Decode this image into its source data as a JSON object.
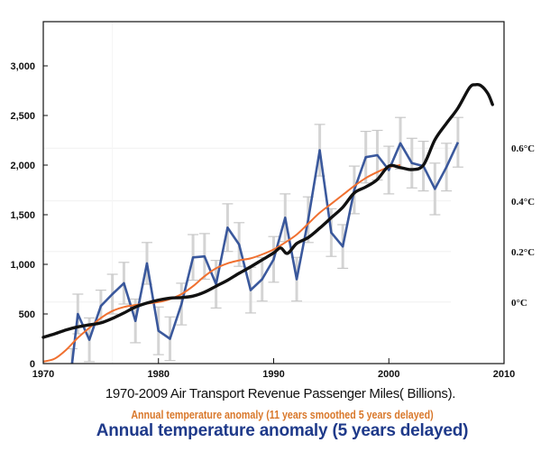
{
  "chart_data": {
    "type": "line",
    "title": "",
    "xlabel": "",
    "ylabel": "",
    "xlim": [
      1970,
      2010
    ],
    "ylim": [
      0,
      3450
    ],
    "x_ticks": [
      1970,
      1980,
      1990,
      2000,
      2010
    ],
    "x_tick_labels": [
      "1970",
      "1980",
      "1990",
      "2000",
      "2010"
    ],
    "y_ticks": [
      0,
      500,
      1000,
      1500,
      2000,
      2500,
      3000
    ],
    "y_tick_labels": [
      "0",
      "500",
      "1,000",
      "1,500",
      "2,000",
      "2,500",
      "3,000"
    ],
    "right_axis": {
      "unit": "°C",
      "ticks": [
        0,
        0.2,
        0.4,
        0.6
      ],
      "tick_labels": [
        "0°C",
        "0.2°C",
        "0.4°C",
        "0.6°C"
      ],
      "left_equivalent": [
        620,
        1130,
        1640,
        2170
      ]
    },
    "grid": true,
    "series": [
      {
        "name": "1970-2009 Air Transport Revenue Passenger Miles( Billions).",
        "color": "#111111",
        "x": [
          1970,
          1971,
          1972,
          1973,
          1974,
          1975,
          1976,
          1977,
          1978,
          1979,
          1980,
          1981,
          1982,
          1983,
          1984,
          1985,
          1986,
          1987,
          1988,
          1989,
          1990,
          1990.6,
          1991.2,
          1992,
          1993,
          1994,
          1995,
          1996,
          1997,
          1998,
          1999,
          2000,
          2001,
          2002,
          2003,
          2004,
          2005,
          2006,
          2007,
          2007.5,
          2008,
          2008.6,
          2009
        ],
        "values": [
          265,
          300,
          340,
          370,
          390,
          410,
          455,
          510,
          570,
          610,
          640,
          660,
          665,
          680,
          720,
          780,
          840,
          910,
          975,
          1045,
          1115,
          1165,
          1110,
          1210,
          1270,
          1365,
          1470,
          1575,
          1720,
          1780,
          1855,
          1990,
          1975,
          1955,
          2000,
          2255,
          2420,
          2575,
          2780,
          2810,
          2800,
          2720,
          2610
        ]
      },
      {
        "name": "Annual temperature anomaly (11 years smoothed 5 years delayed)",
        "color": "#f07030",
        "x": [
          1970,
          1971,
          1972,
          1973,
          1974,
          1975,
          1976,
          1977,
          1978,
          1979,
          1980,
          1981,
          1982,
          1983,
          1984,
          1985,
          1986,
          1987,
          1988,
          1989,
          1990,
          1991,
          1992,
          1993,
          1994,
          1995,
          1996,
          1997,
          1998,
          1999,
          2000,
          2001
        ],
        "values": [
          20,
          50,
          140,
          260,
          360,
          460,
          530,
          570,
          590,
          605,
          620,
          650,
          700,
          780,
          880,
          960,
          1010,
          1040,
          1060,
          1100,
          1150,
          1220,
          1300,
          1410,
          1520,
          1610,
          1700,
          1790,
          1870,
          1930,
          1980,
          2000
        ]
      },
      {
        "name": "Annual temperature anomaly (5 years delayed)",
        "color": "#2a4b95",
        "x": [
          1972.5,
          1973,
          1974,
          1975,
          1976,
          1977,
          1978,
          1979,
          1980,
          1981,
          1982,
          1983,
          1984,
          1985,
          1986,
          1987,
          1988,
          1989,
          1990,
          1991,
          1992,
          1993,
          1994,
          1995,
          1996,
          1997,
          1998,
          1999,
          2000,
          2001,
          2002,
          2003,
          2004,
          2005,
          2006
        ],
        "values": [
          0,
          500,
          240,
          580,
          700,
          810,
          430,
          1010,
          330,
          250,
          600,
          1070,
          1080,
          800,
          1370,
          1200,
          740,
          850,
          1050,
          1470,
          850,
          1450,
          2150,
          1320,
          1180,
          1750,
          2080,
          2100,
          1950,
          2220,
          2020,
          1990,
          1760,
          1980,
          2230
        ],
        "error": [
          150,
          200,
          220,
          160,
          200,
          210,
          220,
          210,
          240,
          220,
          210,
          230,
          230,
          240,
          240,
          220,
          230,
          220,
          230,
          240,
          220,
          230,
          260,
          240,
          220,
          240,
          260,
          250,
          240,
          260,
          250,
          250,
          260,
          240,
          250
        ]
      }
    ],
    "legend": {
      "placement": "bottom",
      "entries": [
        "1970-2009 Air Transport Revenue Passenger Miles( Billions).",
        "Annual temperature anomaly (11 years smoothed 5 years delayed)",
        "Annual temperature anomaly (5 years delayed)"
      ]
    }
  }
}
